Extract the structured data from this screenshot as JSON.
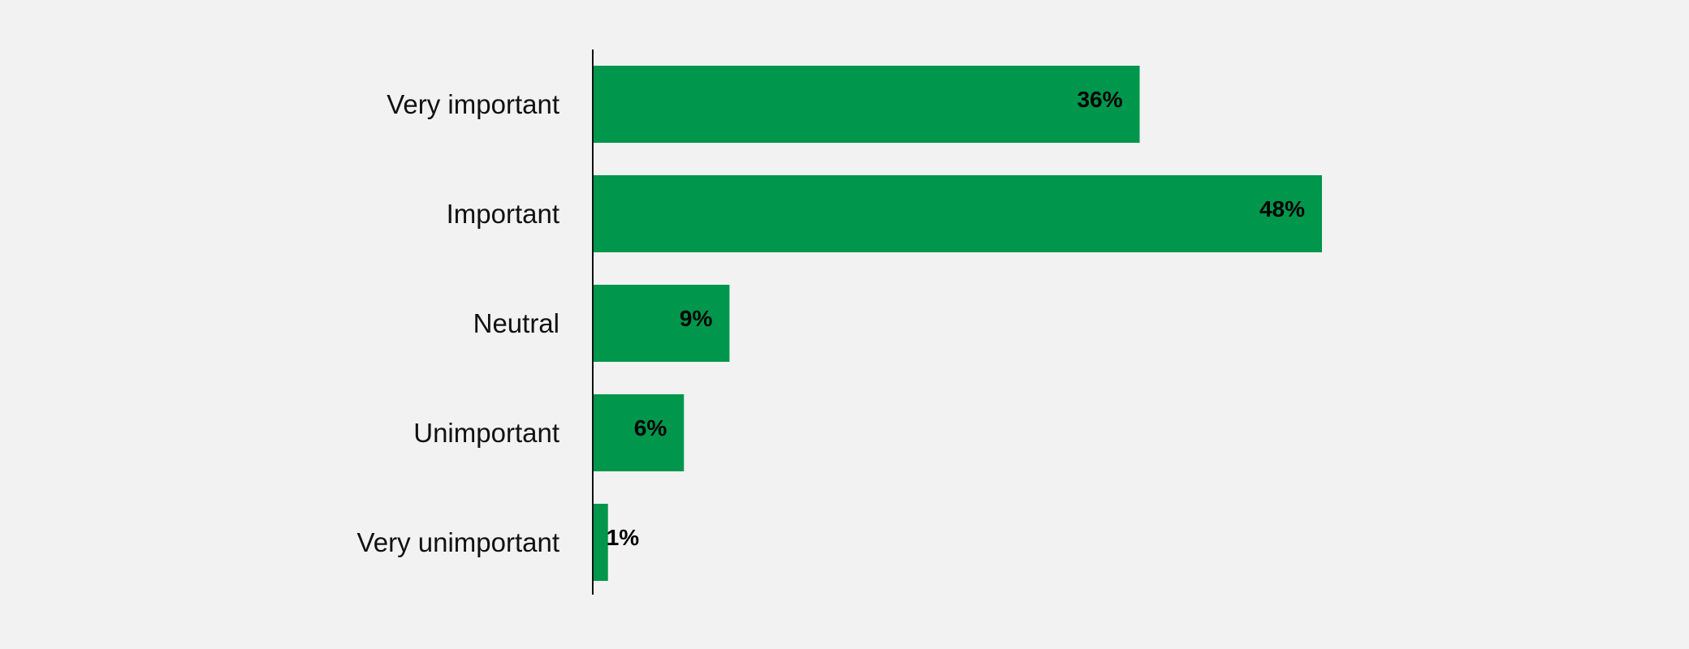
{
  "colors": {
    "background": "#f2f2f2",
    "bar": "#00964c",
    "axis": "#111111",
    "label": "#111111",
    "value_label": "#000000"
  },
  "chart_data": {
    "type": "bar",
    "orientation": "horizontal",
    "title": "",
    "xlabel": "",
    "ylabel": "",
    "categories": [
      "Very important",
      "Important",
      "Neutral",
      "Unimportant",
      "Very unimportant"
    ],
    "values": [
      36,
      48,
      9,
      6,
      1
    ],
    "data_labels": [
      "36%",
      "48%",
      "9%",
      "6%",
      "1%"
    ],
    "unit": "%",
    "xlim": [
      0,
      48
    ],
    "grid": false,
    "legend": "none"
  }
}
